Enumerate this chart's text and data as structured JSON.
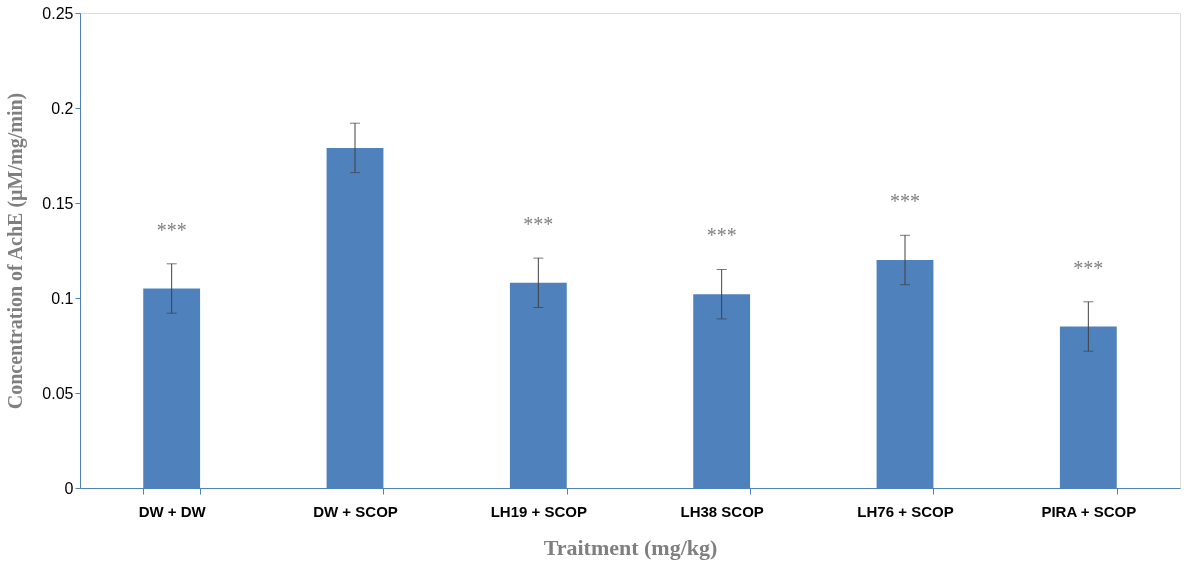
{
  "chart_data": {
    "type": "bar",
    "xlabel": "Traitment (mg/kg)",
    "ylabel": "Concentration of AchE (µM/mg/min)",
    "categories": [
      "DW + DW",
      "DW + SCOP",
      "LH19 + SCOP",
      "LH38 SCOP",
      "LH76 + SCOP",
      "PIRA + SCOP"
    ],
    "values": [
      0.105,
      0.179,
      0.108,
      0.102,
      0.12,
      0.085
    ],
    "errors": [
      0.013,
      0.013,
      0.013,
      0.013,
      0.013,
      0.013
    ],
    "color": "#4f81bd",
    "ylim": [
      0,
      0.25
    ],
    "yticks": [
      0,
      0.05,
      0.1,
      0.15,
      0.2,
      0.25
    ],
    "grid": false,
    "annotations": [
      {
        "text": "***",
        "x": "DW + DW",
        "y": 0.105
      },
      {
        "text": "***",
        "x": "LH19 + SCOP",
        "y": 0.108
      },
      {
        "text": "***",
        "x": "LH38 SCOP",
        "y": 0.102
      },
      {
        "text": "***",
        "x": "LH76 + SCOP",
        "y": 0.12
      },
      {
        "text": "***",
        "x": "PIRA + SCOP",
        "y": 0.085
      }
    ]
  }
}
